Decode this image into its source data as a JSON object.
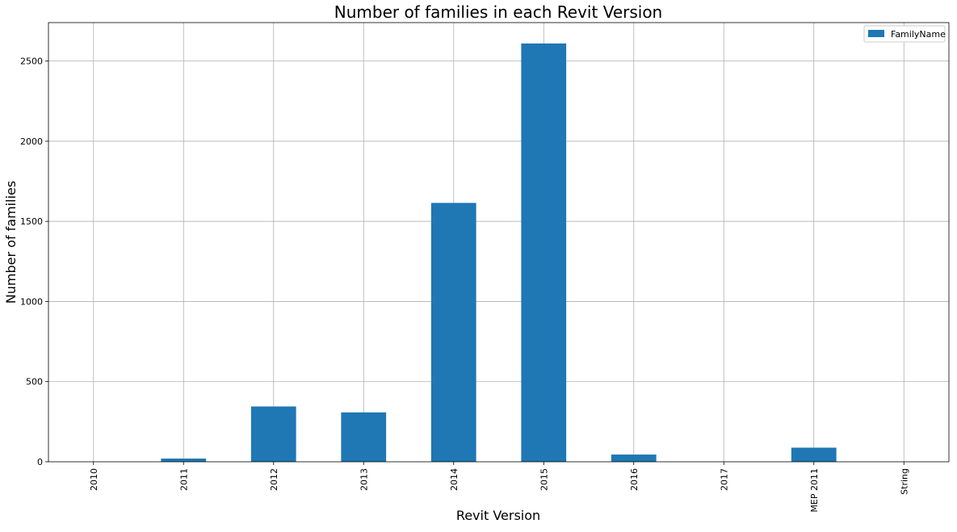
{
  "chart_data": {
    "type": "bar",
    "title": "Number of families in each Revit Version",
    "xlabel": "Revit Version",
    "ylabel": "Number of families",
    "categories": [
      "2010",
      "2011",
      "2012",
      "2013",
      "2014",
      "2015",
      "2016",
      "2017",
      "MEP 2011",
      "String"
    ],
    "series": [
      {
        "name": "FamilyName",
        "color": "#1f77b4",
        "values": [
          0,
          20,
          345,
          308,
          1615,
          2610,
          45,
          0,
          88,
          0
        ]
      }
    ],
    "ylim": [
      0,
      2740
    ],
    "yticks": [
      0,
      500,
      1000,
      1500,
      2000,
      2500
    ],
    "grid": true,
    "legend_position": "top-right"
  }
}
